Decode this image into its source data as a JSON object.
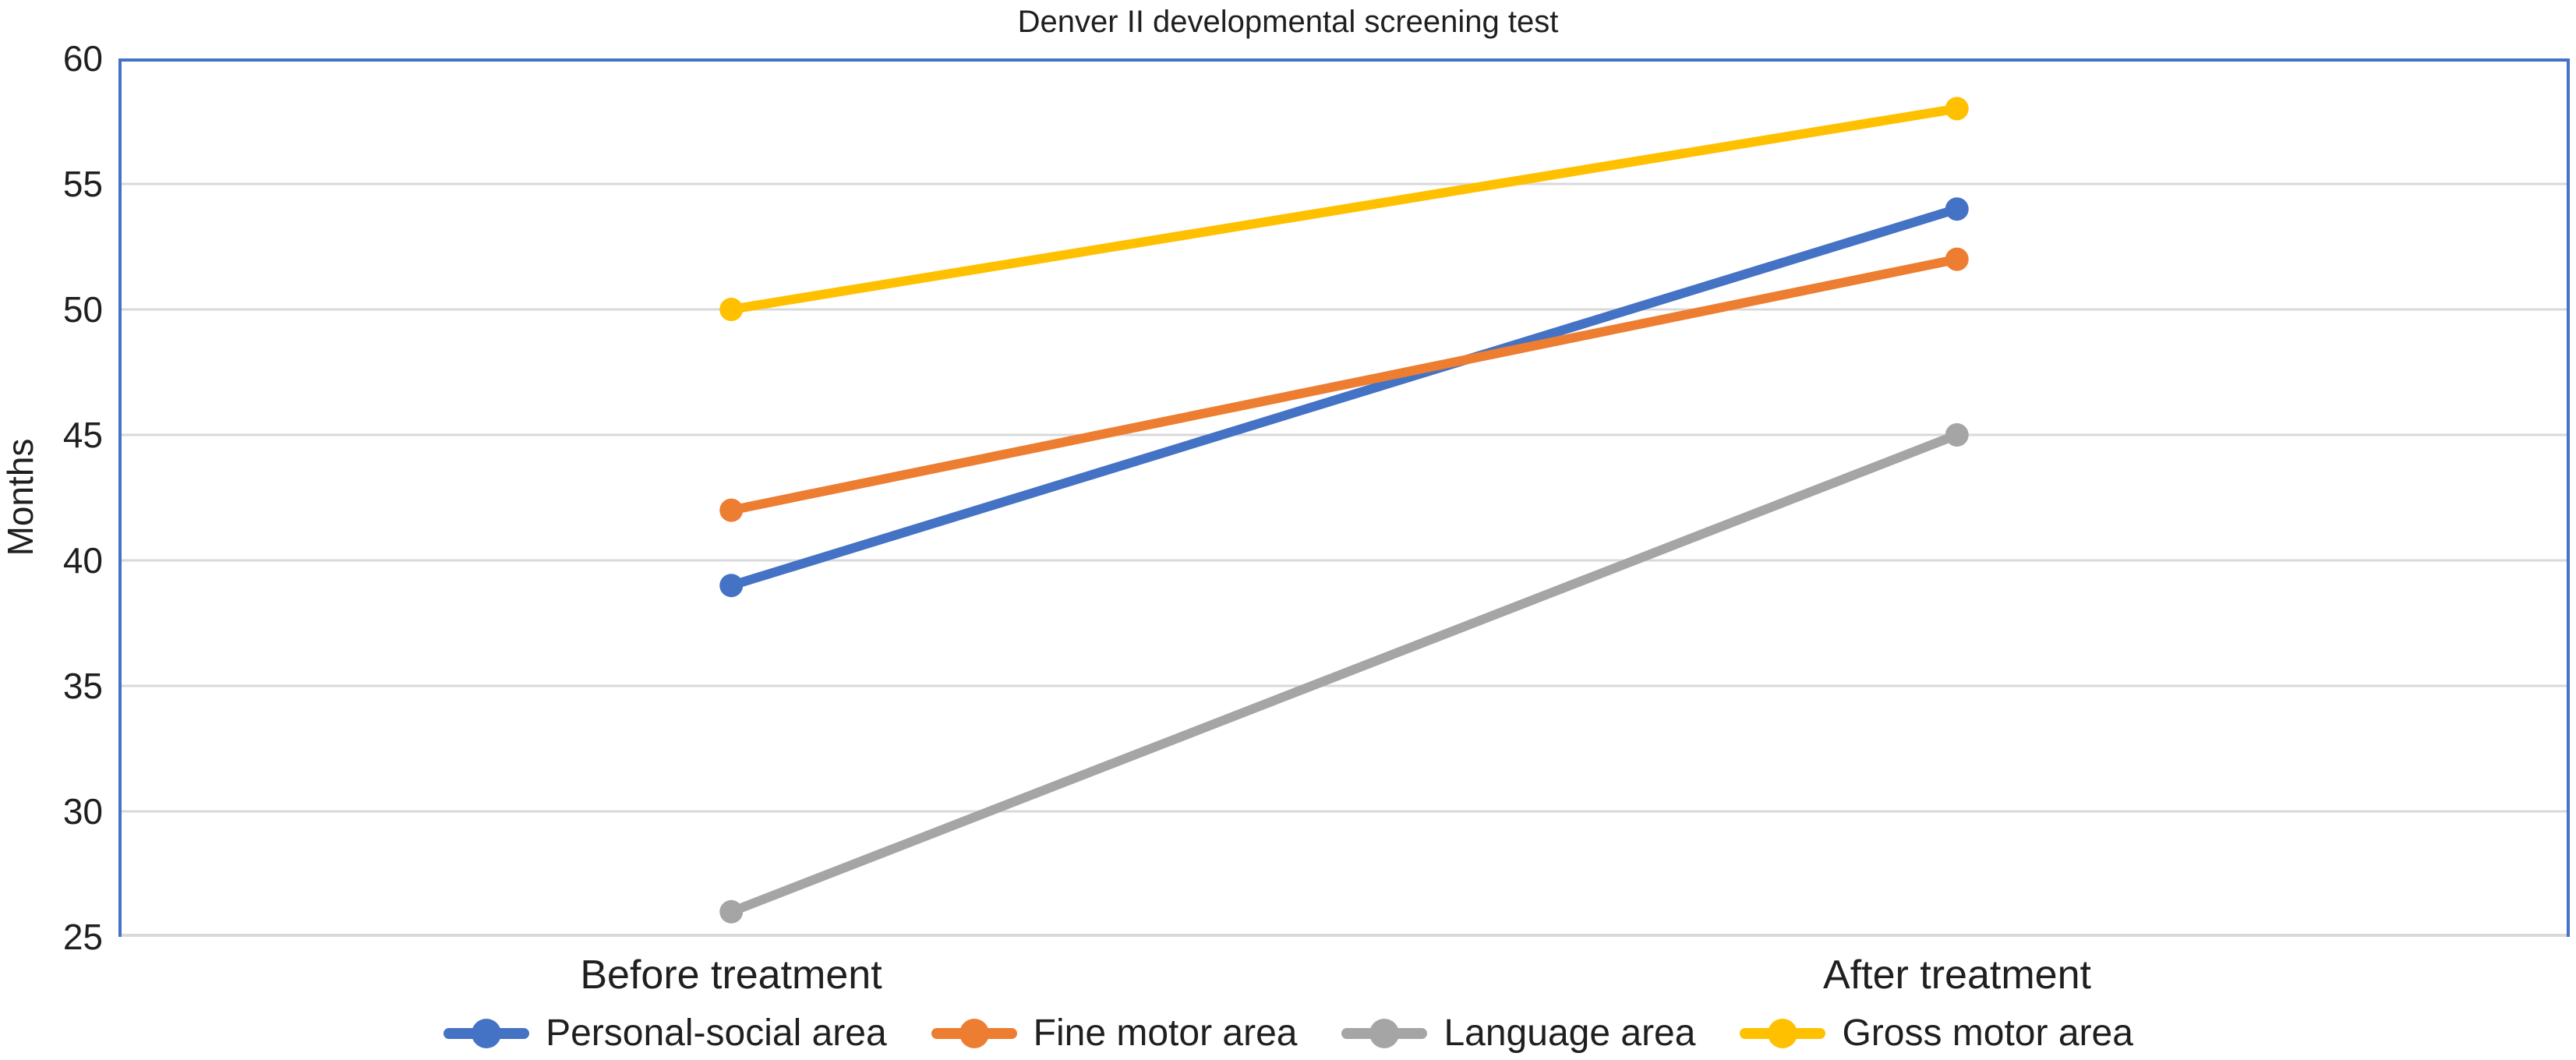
{
  "chart_data": {
    "type": "line",
    "title": "Denver II developmental screening test",
    "xlabel": "",
    "ylabel": "Months",
    "categories": [
      "Before treatment",
      "After treatment"
    ],
    "series": [
      {
        "name": "Personal-social area",
        "color": "#4472C4",
        "values": [
          39,
          54
        ]
      },
      {
        "name": "Fine motor area",
        "color": "#ED7D31",
        "values": [
          42,
          52
        ]
      },
      {
        "name": "Language area",
        "color": "#A5A5A5",
        "values": [
          26,
          45
        ]
      },
      {
        "name": "Gross motor area",
        "color": "#FFC000",
        "values": [
          50,
          58
        ]
      }
    ],
    "ylim": [
      25,
      60
    ],
    "yticks": [
      25,
      30,
      35,
      40,
      45,
      50,
      55,
      60
    ],
    "grid": true,
    "legend_position": "bottom",
    "colors": {
      "plot_border": "#4472C4",
      "gridline": "#D9D9D9",
      "baseline": "#D9D9D9",
      "text": "#1f1f1f",
      "background": "#FFFFFF"
    }
  }
}
